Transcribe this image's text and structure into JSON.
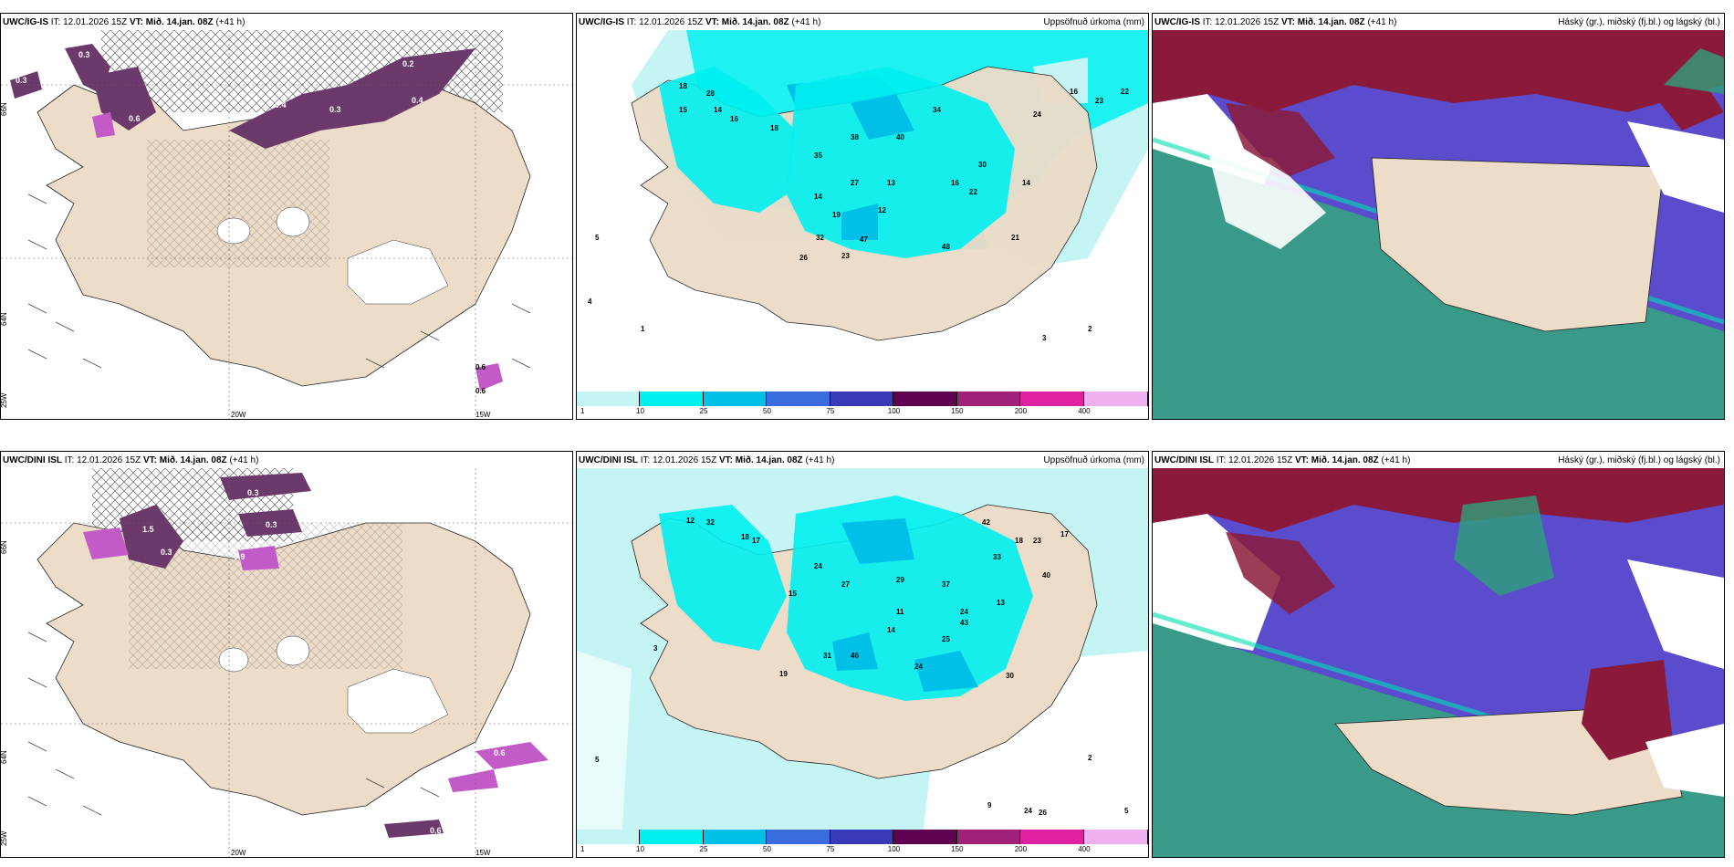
{
  "panels": [
    {
      "model": "UWC/IG-IS",
      "it": "IT: 12.01.2026 15Z",
      "vt_label": "VT:",
      "vt": "Mið. 14.jan. 08Z",
      "lead": "(+41 h)",
      "right": ""
    },
    {
      "model": "UWC/IG-IS",
      "it": "IT: 12.01.2026 15Z",
      "vt_label": "VT:",
      "vt": "Mið. 14.jan. 08Z",
      "lead": "(+41 h)",
      "right": "Uppsöfnuð úrkoma (mm)"
    },
    {
      "model": "UWC/IG-IS",
      "it": "IT: 12.01.2026 15Z",
      "vt_label": "VT:",
      "vt": "Mið. 14.jan. 08Z",
      "lead": "(+41 h)",
      "right": "Háský (gr.), miðský (fj.bl.) og lágský (bl.)"
    },
    {
      "model": "UWC/DINI ISL",
      "it": "IT: 12.01.2026 15Z",
      "vt_label": "VT:",
      "vt": "Mið. 14.jan. 08Z",
      "lead": "(+41 h)",
      "right": ""
    },
    {
      "model": "UWC/DINI ISL",
      "it": "IT: 12.01.2026 15Z",
      "vt_label": "VT:",
      "vt": "Mið. 14.jan. 08Z",
      "lead": "(+41 h)",
      "right": "Uppsöfnuð úrkoma (mm)"
    },
    {
      "model": "UWC/DINI ISL",
      "it": "IT: 12.01.2026 15Z",
      "vt_label": "VT:",
      "vt": "Mið. 14.jan. 08Z",
      "lead": "(+41 h)",
      "right": "Háský (gr.), miðský (fj.bl.) og lágský (bl.)"
    }
  ],
  "axes": {
    "lat_top": "66N",
    "lat_mid": "64N",
    "lon_left": "25W",
    "lon_a": "20W",
    "lon_b": "15W",
    "lat_right": "65N"
  },
  "colorbar": {
    "ticks": [
      "1",
      "10",
      "25",
      "50",
      "75",
      "100",
      "150",
      "200",
      "400"
    ],
    "colors": [
      "#c4f4f4",
      "#00f0f0",
      "#00c0e8",
      "#3a6ce0",
      "#3a3ab8",
      "#600050",
      "#a0207a",
      "#e020a0",
      "#f0b0f0"
    ]
  },
  "snow_values_top": [
    "0.3",
    "0.3",
    "0.2",
    "0.6",
    "0.4",
    "0.3",
    "0.4",
    "0.6",
    "0.3",
    "0.6"
  ],
  "snow_values_bottom": [
    "0.3",
    "0.3",
    "1.5",
    "0.3",
    "0.9",
    "0.6",
    "1.0",
    "0.6"
  ],
  "precip_values_top": [
    "18",
    "28",
    "15",
    "14",
    "16",
    "35",
    "38",
    "40",
    "34",
    "22",
    "16",
    "27",
    "13",
    "14",
    "19",
    "12",
    "32",
    "47",
    "23",
    "26",
    "18",
    "48",
    "30",
    "14",
    "24",
    "16",
    "23",
    "22",
    "2",
    "3",
    "5",
    "1",
    "4",
    "21"
  ],
  "precip_values_bottom": [
    "12",
    "32",
    "18",
    "17",
    "24",
    "27",
    "15",
    "29",
    "37",
    "24",
    "13",
    "42",
    "33",
    "18",
    "23",
    "17",
    "40",
    "11",
    "25",
    "43",
    "30",
    "46",
    "31",
    "24",
    "14",
    "19",
    "5",
    "3",
    "2",
    "9",
    "24",
    "26",
    "5"
  ],
  "colors": {
    "land": "#ecdcc8",
    "hatch": "#555555",
    "purple": "#6b3a6b",
    "magenta": "#c25ac7",
    "cyanlight": "#c4f4f4",
    "cyan": "#00f0f0",
    "red": "#8b1a3a",
    "blue": "#5a4ccd",
    "teal": "#3a9a8a"
  }
}
